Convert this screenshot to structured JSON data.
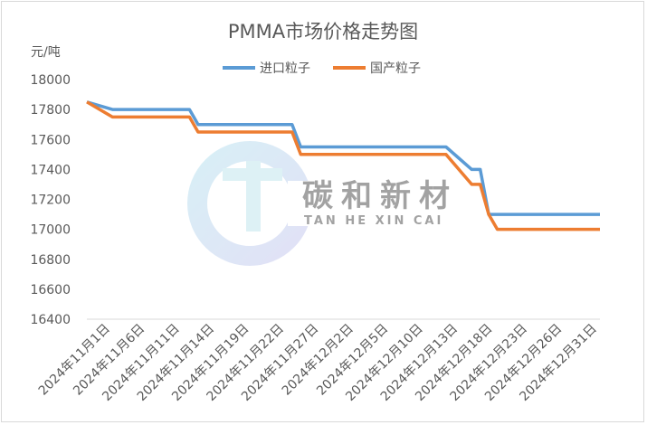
{
  "colors": {
    "import": "#5b9bd5",
    "domestic": "#ed7d31",
    "axis": "#d9d9d9",
    "text": "#595959"
  },
  "watermark": {
    "cn": "碳和新材",
    "en": "TAN HE XIN CAI"
  },
  "chart_data": {
    "type": "line",
    "title": "PMMA市场价格走势图",
    "ylabel": "元/吨",
    "xlabel": "",
    "ylim": [
      16400,
      18000
    ],
    "yticks": [
      16400,
      16600,
      16800,
      17000,
      17200,
      17400,
      17600,
      17800,
      18000
    ],
    "grid": false,
    "legend": "top",
    "categories": [
      "2024年11月1日",
      "2024年11月6日",
      "2024年11月11日",
      "2024年11月14日",
      "2024年11月19日",
      "2024年11月22日",
      "2024年11月27日",
      "2024年12月2日",
      "2024年12月5日",
      "2024年12月10日",
      "2024年12月13日",
      "2024年12月18日",
      "2024年12月23日",
      "2024年12月26日",
      "2024年12月31日"
    ],
    "x": [
      "2024-11-01",
      "2024-11-04",
      "2024-11-05",
      "2024-11-06",
      "2024-11-07",
      "2024-11-08",
      "2024-11-11",
      "2024-11-12",
      "2024-11-13",
      "2024-11-14",
      "2024-11-15",
      "2024-11-18",
      "2024-11-19",
      "2024-11-20",
      "2024-11-21",
      "2024-11-22",
      "2024-11-25",
      "2024-11-26",
      "2024-11-27",
      "2024-11-28",
      "2024-11-29",
      "2024-12-02",
      "2024-12-03",
      "2024-12-04",
      "2024-12-05",
      "2024-12-06",
      "2024-12-09",
      "2024-12-10",
      "2024-12-11",
      "2024-12-12",
      "2024-12-13",
      "2024-12-16",
      "2024-12-17",
      "2024-12-18",
      "2024-12-19",
      "2024-12-20",
      "2024-12-23",
      "2024-12-24",
      "2024-12-25",
      "2024-12-26",
      "2024-12-27",
      "2024-12-30",
      "2024-12-31"
    ],
    "series": [
      {
        "name": "进口粒子",
        "color": "#5b9bd5",
        "values": [
          17850,
          17800,
          17800,
          17800,
          17800,
          17800,
          17800,
          17800,
          17800,
          17700,
          17700,
          17700,
          17700,
          17700,
          17700,
          17700,
          17700,
          17550,
          17550,
          17550,
          17550,
          17550,
          17550,
          17550,
          17550,
          17550,
          17550,
          17550,
          17550,
          17550,
          17550,
          17400,
          17400,
          17100,
          17100,
          17100,
          17100,
          17100,
          17100,
          17100,
          17100,
          17100,
          17100
        ]
      },
      {
        "name": "国产粒子",
        "color": "#ed7d31",
        "values": [
          17850,
          17750,
          17750,
          17750,
          17750,
          17750,
          17750,
          17750,
          17750,
          17650,
          17650,
          17650,
          17650,
          17650,
          17650,
          17650,
          17650,
          17500,
          17500,
          17500,
          17500,
          17500,
          17500,
          17500,
          17500,
          17500,
          17500,
          17500,
          17500,
          17500,
          17500,
          17300,
          17300,
          17100,
          17000,
          17000,
          17000,
          17000,
          17000,
          17000,
          17000,
          17000,
          17000
        ]
      }
    ]
  }
}
